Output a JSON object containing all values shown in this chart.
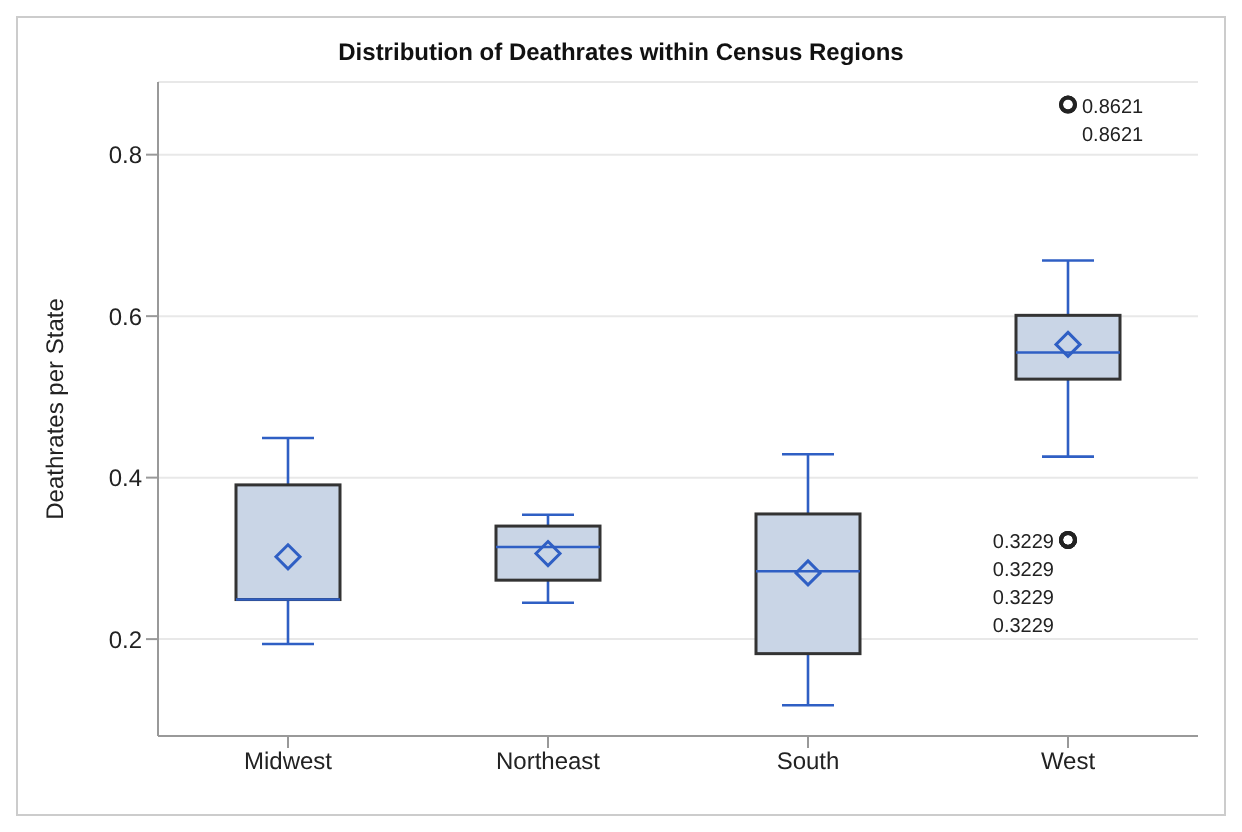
{
  "chart_data": {
    "type": "box",
    "title": "Distribution of Deathrates within Census Regions",
    "ylabel": "Deathrates per State",
    "categories": [
      "Midwest",
      "Northeast",
      "South",
      "West"
    ],
    "boxes": [
      {
        "low": 0.194,
        "q1": 0.249,
        "median": 0.249,
        "q3": 0.391,
        "high": 0.449,
        "mean": 0.302
      },
      {
        "low": 0.245,
        "q1": 0.273,
        "median": 0.314,
        "q3": 0.34,
        "high": 0.354,
        "mean": 0.306
      },
      {
        "low": 0.118,
        "q1": 0.182,
        "median": 0.284,
        "q3": 0.355,
        "high": 0.429,
        "mean": 0.282
      },
      {
        "low": 0.426,
        "q1": 0.522,
        "median": 0.555,
        "q3": 0.601,
        "high": 0.669,
        "mean": 0.565,
        "outliers": [
          0.8621,
          0.8621,
          0.3229,
          0.3229,
          0.3229,
          0.3229
        ]
      }
    ],
    "color": "#c9d5e6",
    "marker": "diamond",
    "ylim": [
      0.08,
      0.89
    ],
    "yticks": [
      0.2,
      0.4,
      0.6,
      0.8
    ],
    "grid": "y",
    "annotations": [
      "0.8621",
      "0.8621",
      "0.3229",
      "0.3229",
      "0.3229",
      "0.3229"
    ]
  }
}
